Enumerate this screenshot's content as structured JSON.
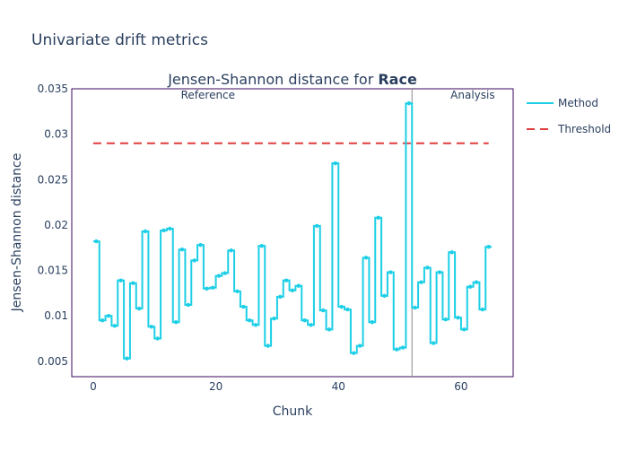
{
  "page_title": "Univariate drift metrics",
  "chart_data": {
    "type": "line",
    "title_prefix": "Jensen-Shannon distance for ",
    "title_bold": "Race",
    "xlabel": "Chunk",
    "ylabel": "Jensen-Shannon distance",
    "xlim": [
      -3.5,
      68.5
    ],
    "ylim": [
      0.0033,
      0.035
    ],
    "x_ticks": [
      0,
      20,
      40,
      60
    ],
    "y_ticks": [
      0.005,
      0.01,
      0.015,
      0.02,
      0.025,
      0.03,
      0.035
    ],
    "y_tick_labels": [
      "0.005",
      "0.01",
      "0.015",
      "0.02",
      "0.025",
      "0.03",
      "0.035"
    ],
    "grid": false,
    "legend_position": "right",
    "period_boundary_x": 52,
    "period_labels": {
      "reference": "Reference",
      "analysis": "Analysis"
    },
    "threshold": {
      "value": 0.029,
      "x_start": 0,
      "x_end": 64.5,
      "color": "#e03d3d"
    },
    "series": [
      {
        "name": "Method",
        "color": "#1ccfe6",
        "x": [
          0,
          1,
          2,
          3,
          4,
          5,
          6,
          7,
          8,
          9,
          10,
          11,
          12,
          13,
          14,
          15,
          16,
          17,
          18,
          19,
          20,
          21,
          22,
          23,
          24,
          25,
          26,
          27,
          28,
          29,
          30,
          31,
          32,
          33,
          34,
          35,
          36,
          37,
          38,
          39,
          40,
          41,
          42,
          43,
          44,
          45,
          46,
          47,
          48,
          49,
          50,
          51,
          52,
          53,
          54,
          55,
          56,
          57,
          58,
          59,
          60,
          61,
          62,
          63,
          64
        ],
        "values": [
          0.0182,
          0.0095,
          0.01,
          0.0089,
          0.0139,
          0.0053,
          0.0136,
          0.0108,
          0.0193,
          0.0088,
          0.0075,
          0.0194,
          0.0196,
          0.0093,
          0.0173,
          0.0112,
          0.0161,
          0.0178,
          0.013,
          0.0131,
          0.0144,
          0.0147,
          0.0172,
          0.0127,
          0.011,
          0.0095,
          0.009,
          0.0177,
          0.0067,
          0.0097,
          0.0121,
          0.0139,
          0.0128,
          0.0133,
          0.0095,
          0.009,
          0.0199,
          0.0106,
          0.0085,
          0.0268,
          0.011,
          0.0107,
          0.0059,
          0.0067,
          0.0164,
          0.0093,
          0.0208,
          0.0122,
          0.0148,
          0.0063,
          0.0065,
          0.0334,
          0.0109,
          0.0137,
          0.0153,
          0.007,
          0.0148,
          0.0096,
          0.017,
          0.0098,
          0.0085,
          0.0132,
          0.0137,
          0.0107,
          0.0176
        ]
      }
    ],
    "legend": [
      {
        "name": "Method",
        "color": "#1ccfe6",
        "style": "solid"
      },
      {
        "name": "Threshold",
        "color": "#e03d3d",
        "style": "dashed"
      }
    ]
  }
}
